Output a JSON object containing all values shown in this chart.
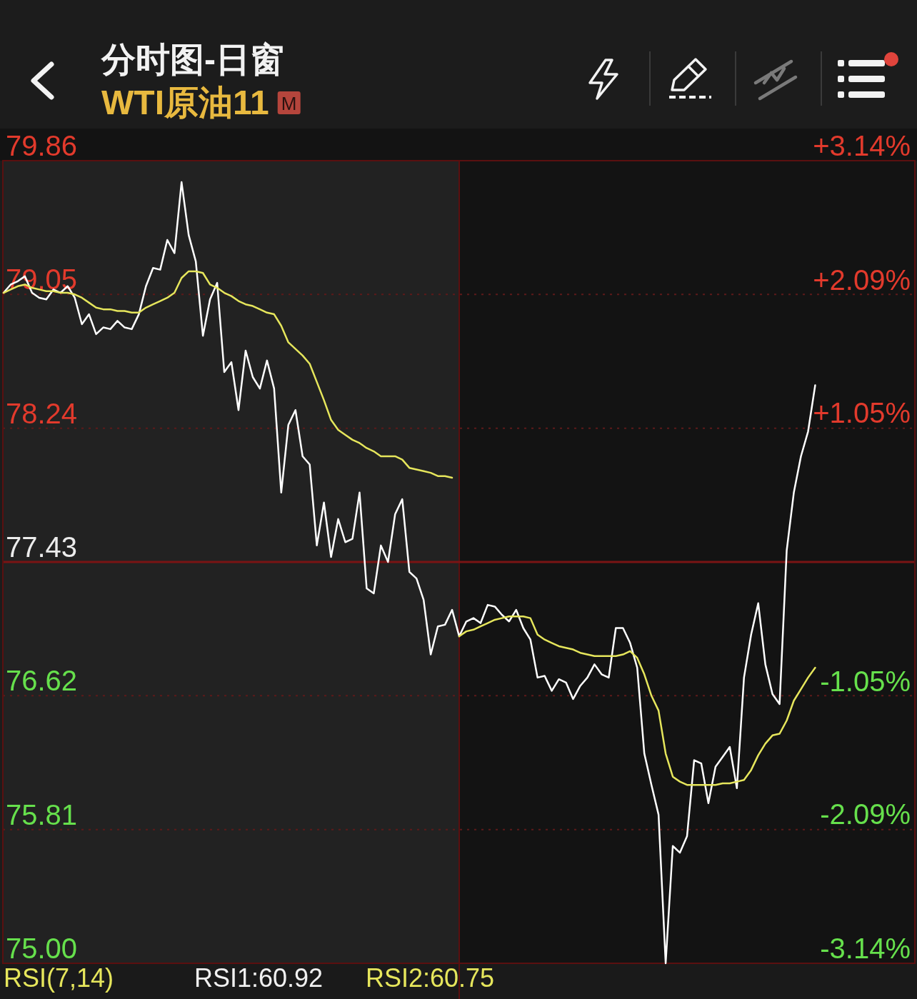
{
  "chart_data": {
    "type": "line",
    "title": "分时图-日窗",
    "subtitle": "WTI原油11",
    "categories": [
      null,
      null,
      null,
      null,
      null,
      null,
      null,
      null,
      null,
      null,
      null,
      null,
      null,
      null,
      null,
      null,
      null,
      null,
      null,
      null,
      null,
      null,
      null,
      null,
      null,
      null,
      null,
      null,
      null,
      null,
      null,
      null,
      null,
      null,
      null,
      null,
      null,
      null,
      null,
      null,
      null,
      null,
      null,
      null,
      null,
      null,
      null,
      null,
      null,
      null,
      null,
      null,
      null,
      null,
      null,
      null,
      null,
      null,
      null,
      null,
      null,
      null,
      null,
      null,
      null,
      null,
      null,
      null,
      null,
      null,
      null,
      null,
      null,
      null,
      null,
      null,
      null,
      null,
      null,
      null,
      null,
      null,
      null,
      null,
      null,
      null,
      null,
      null,
      null,
      null,
      null,
      null,
      null,
      null,
      null,
      null,
      null,
      null,
      null,
      null,
      null,
      null,
      null,
      null,
      null,
      null,
      null,
      null,
      null,
      null,
      null,
      null,
      null,
      null,
      null,
      null,
      null,
      null,
      null,
      null,
      null,
      null,
      null,
      null,
      null,
      null,
      null,
      null,
      null
    ],
    "series": [
      {
        "color": "#ffffff",
        "values": [
          79.06,
          79.11,
          79.13,
          79.16,
          79.06,
          79.03,
          79.02,
          79.08,
          79.06,
          79.1,
          79.03,
          78.87,
          78.93,
          78.81,
          78.85,
          78.84,
          78.89,
          78.85,
          78.84,
          78.93,
          79.1,
          79.21,
          79.2,
          79.38,
          79.3,
          79.73,
          79.41,
          79.25,
          78.8,
          79.02,
          79.12,
          78.58,
          78.64,
          78.35,
          78.71,
          78.55,
          78.48,
          78.65,
          78.48,
          77.85,
          78.26,
          78.35,
          78.07,
          78.02,
          77.53,
          77.79,
          77.46,
          77.69,
          77.55,
          77.57,
          77.85,
          77.27,
          77.24,
          77.53,
          77.43,
          77.72,
          77.81,
          77.37,
          77.33,
          77.2,
          76.87,
          77.04,
          77.05,
          77.14,
          76.98,
          77.07,
          77.09,
          77.06,
          77.17,
          77.16,
          77.11,
          77.07,
          77.14,
          77.03,
          76.96,
          76.73,
          76.74,
          76.65,
          76.72,
          76.7,
          76.6,
          76.68,
          76.73,
          76.81,
          76.75,
          76.73,
          77.03,
          77.03,
          76.94,
          76.79,
          76.27,
          76.08,
          75.9,
          75.0,
          75.71,
          75.67,
          75.77,
          76.23,
          76.21,
          75.97,
          76.19,
          76.25,
          76.31,
          76.06,
          76.73,
          76.99,
          77.18,
          76.81,
          76.63,
          76.57,
          77.5,
          77.85,
          78.07,
          78.22,
          78.5,
          null,
          null,
          null,
          null,
          null,
          null,
          null,
          null,
          null,
          null,
          null,
          null,
          null,
          null
        ]
      },
      {
        "color": "#e6e65c",
        "values": [
          79.06,
          79.08,
          79.1,
          79.11,
          79.09,
          79.08,
          79.07,
          79.07,
          79.06,
          79.06,
          79.05,
          79.03,
          79.0,
          78.97,
          78.96,
          78.96,
          78.95,
          78.95,
          78.94,
          78.94,
          78.97,
          78.99,
          79.01,
          79.03,
          79.06,
          79.15,
          79.19,
          79.19,
          79.18,
          79.11,
          79.09,
          79.06,
          79.04,
          79.01,
          78.99,
          78.98,
          78.96,
          78.94,
          78.93,
          78.86,
          78.76,
          78.72,
          78.68,
          78.63,
          78.52,
          78.41,
          78.29,
          78.23,
          78.2,
          78.17,
          78.15,
          78.12,
          78.1,
          78.07,
          78.07,
          78.07,
          78.05,
          78.0,
          77.99,
          77.98,
          77.97,
          77.95,
          77.95,
          77.94,
          null,
          null,
          null,
          null,
          null,
          null,
          null,
          null,
          null,
          null,
          null,
          null,
          null,
          null,
          null,
          null,
          null,
          null,
          null,
          null,
          null,
          null,
          null,
          null,
          null,
          null,
          null,
          null,
          null,
          null,
          null,
          null,
          null,
          null,
          null,
          null,
          null,
          null,
          null,
          null,
          null,
          null,
          null,
          null,
          null,
          null,
          null,
          null,
          null,
          null,
          null,
          null,
          null,
          null,
          null,
          null,
          null,
          null,
          null,
          null,
          null,
          null,
          null,
          null,
          null
        ]
      },
      {
        "color": "#e6e65c",
        "values": [
          null,
          null,
          null,
          null,
          null,
          null,
          null,
          null,
          null,
          null,
          null,
          null,
          null,
          null,
          null,
          null,
          null,
          null,
          null,
          null,
          null,
          null,
          null,
          null,
          null,
          null,
          null,
          null,
          null,
          null,
          null,
          null,
          null,
          null,
          null,
          null,
          null,
          null,
          null,
          null,
          null,
          null,
          null,
          null,
          null,
          null,
          null,
          null,
          null,
          null,
          null,
          null,
          null,
          null,
          null,
          null,
          null,
          null,
          null,
          null,
          null,
          null,
          null,
          null,
          76.98,
          77.01,
          77.02,
          77.04,
          77.06,
          77.08,
          77.09,
          77.1,
          77.1,
          77.1,
          77.09,
          76.99,
          76.96,
          76.94,
          76.92,
          76.91,
          76.9,
          76.88,
          76.87,
          76.86,
          76.86,
          76.86,
          76.86,
          76.87,
          76.89,
          76.85,
          76.75,
          76.62,
          76.53,
          76.27,
          76.13,
          76.1,
          76.08,
          76.08,
          76.08,
          76.08,
          76.08,
          76.09,
          76.09,
          76.1,
          76.11,
          76.17,
          76.26,
          76.33,
          76.38,
          76.39,
          76.47,
          76.59,
          76.66,
          76.73,
          76.79,
          null,
          null,
          null,
          null,
          null,
          null,
          null,
          null,
          null,
          null,
          null,
          null,
          null,
          null
        ]
      }
    ],
    "ylim": [
      75,
      79.86
    ],
    "yticks": [
      79.86,
      79.05,
      78.24,
      77.43,
      76.62,
      75.81,
      {
        "value": 75,
        "label": "75.00"
      }
    ],
    "y2lim": [
      -3.14,
      3.14
    ],
    "y2ticks": [
      {
        "value": 3.14,
        "label": "+3.14%"
      },
      {
        "value": 2.09,
        "label": "+2.09%"
      },
      {
        "value": 1.05,
        "label": "+1.05%"
      },
      {
        "value": -1.05,
        "label": "-1.05%"
      },
      {
        "value": -2.09,
        "label": "-2.09%"
      },
      {
        "value": -3.14,
        "label": "-3.14%"
      }
    ],
    "ref_lines": [
      {
        "axis": "y",
        "value": 77.43,
        "color": "#7a1414"
      }
    ],
    "grid": "y",
    "annotations": [
      "M",
      "RSI(7,14)",
      "RSI1:60.92",
      "RSI2:60.75"
    ]
  }
}
